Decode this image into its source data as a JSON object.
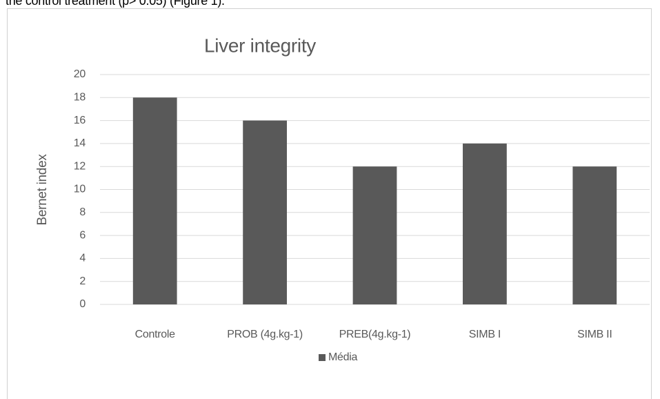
{
  "page_text": "the control treatment (p> 0.05) (Figure 1).",
  "chart_data": {
    "type": "bar",
    "title": "Liver integrity",
    "y_label": "Bernet index",
    "categories": [
      "Controle",
      "PROB (4g.kg-1)",
      "PREB(4g.kg-1)",
      "SIMB I",
      "SIMB II"
    ],
    "series": [
      {
        "name": "Média",
        "color": "#595959",
        "values": [
          18,
          16,
          12,
          14,
          12
        ]
      }
    ],
    "ylim": [
      0,
      20
    ],
    "yticks": [
      0,
      2,
      4,
      6,
      8,
      10,
      12,
      14,
      16,
      18,
      20
    ],
    "grid": true,
    "legend": "bottom"
  }
}
